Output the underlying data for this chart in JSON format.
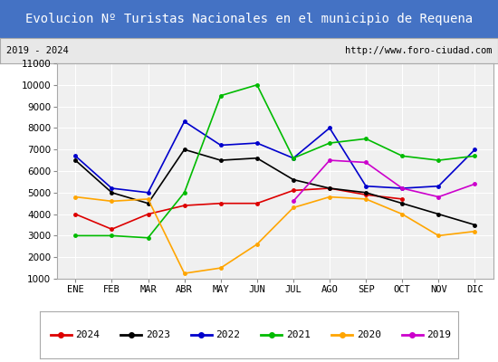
{
  "title": "Evolucion Nº Turistas Nacionales en el municipio de Requena",
  "subtitle_left": "2019 - 2024",
  "subtitle_right": "http://www.foro-ciudad.com",
  "xlabel_months": [
    "ENE",
    "FEB",
    "MAR",
    "ABR",
    "MAY",
    "JUN",
    "JUL",
    "AGO",
    "SEP",
    "OCT",
    "NOV",
    "DIC"
  ],
  "ylim": [
    1000,
    11000
  ],
  "yticks": [
    1000,
    2000,
    3000,
    4000,
    5000,
    6000,
    7000,
    8000,
    9000,
    10000,
    11000
  ],
  "series": {
    "2024": {
      "color": "#dd0000",
      "data": [
        4000,
        3300,
        4000,
        4400,
        4500,
        4500,
        5100,
        5200,
        4900,
        4700,
        null,
        null
      ]
    },
    "2023": {
      "color": "#000000",
      "data": [
        6500,
        5000,
        4500,
        7000,
        6500,
        6600,
        5600,
        5200,
        5000,
        4500,
        4000,
        3500
      ]
    },
    "2022": {
      "color": "#0000cc",
      "data": [
        6700,
        5200,
        5000,
        8300,
        7200,
        7300,
        6600,
        8000,
        5300,
        5200,
        5300,
        7000
      ]
    },
    "2021": {
      "color": "#00bb00",
      "data": [
        3000,
        3000,
        2900,
        5000,
        9500,
        10000,
        6600,
        7300,
        7500,
        6700,
        6500,
        6700
      ]
    },
    "2020": {
      "color": "#ffa500",
      "data": [
        4800,
        4600,
        4700,
        1250,
        1500,
        2600,
        4300,
        4800,
        4700,
        4000,
        3000,
        3200
      ]
    },
    "2019": {
      "color": "#cc00cc",
      "data": [
        null,
        null,
        null,
        null,
        null,
        null,
        4600,
        6500,
        6400,
        5200,
        4800,
        5400
      ]
    }
  },
  "title_bg_color": "#4472c4",
  "title_text_color": "#ffffff",
  "subtitle_bg_color": "#e8e8e8",
  "plot_bg_color": "#f0f0f0",
  "grid_color": "#ffffff",
  "title_fontsize": 10,
  "axis_fontsize": 7.5,
  "legend_fontsize": 8
}
